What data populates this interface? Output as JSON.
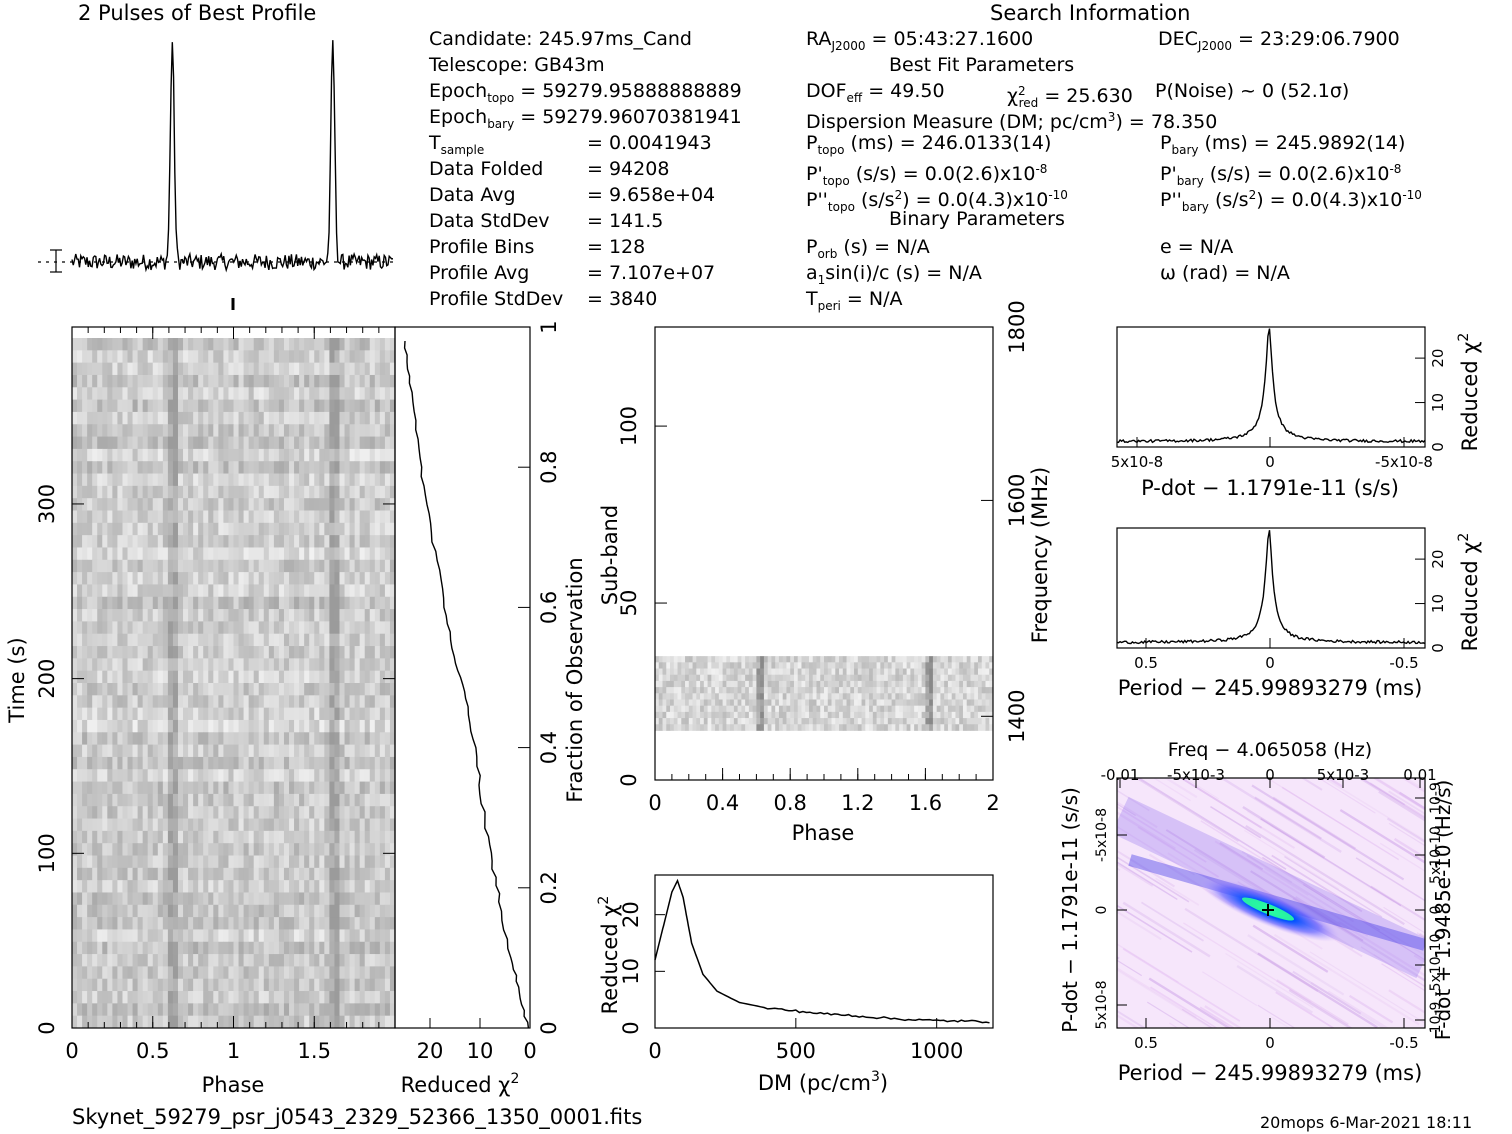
{
  "header": {
    "profile_title": "2 Pulses of Best Profile",
    "search_title": "Search Information",
    "best_fit_title": "Best Fit Parameters",
    "binary_title": "Binary Parameters"
  },
  "info_left": [
    {
      "label": "Candidate:  245.97ms_Cand",
      "value": ""
    },
    {
      "label": "Telescope:  GB43m",
      "value": ""
    },
    {
      "label": "Epoch",
      "sub": "topo",
      "value": "= 59279.95888888889"
    },
    {
      "label": "Epoch",
      "sub": "bary",
      "value": "= 59279.96070381941"
    },
    {
      "label": "T",
      "sub": "sample",
      "value": "=   0.0041943"
    },
    {
      "label": "Data Folded",
      "value": "=   94208"
    },
    {
      "label": "Data Avg",
      "value": "=   9.658e+04"
    },
    {
      "label": "Data StdDev",
      "value": "=   141.5"
    },
    {
      "label": "Profile Bins",
      "value": "=   128"
    },
    {
      "label": "Profile Avg",
      "value": "=   7.107e+07"
    },
    {
      "label": "Profile StdDev",
      "value": "=   3840"
    }
  ],
  "info_mid": {
    "ra": "RA",
    "ra_sub": "J2000",
    "ra_value": " = 05:43:27.1600",
    "dec": "DEC",
    "dec_sub": "J2000",
    "dec_value": " = 23:29:06.7900",
    "dof": "DOF",
    "dof_sub": "eff",
    "dof_value": " = 49.50",
    "chi_label": "χ",
    "chi_sub": "red",
    "chi_value": " = 25.630",
    "pnoise": "P(Noise) ~ 0   (52.1σ)",
    "dm_line": "Dispersion Measure (DM; pc/cm",
    "dm_value": ") = 78.350",
    "ptopo": "P",
    "ptopo_sub": "topo",
    "ptopo_value": " (ms) =  246.0133(14)",
    "pbary": "P",
    "pbary_sub": "bary",
    "pbary_value": " (ms) =  245.9892(14)",
    "pdtopo": "P'",
    "pdtopo_value": " (s/s) = 0.0(2.6)x10",
    "pdtopo_exp": "-8",
    "pdbary": "P'",
    "pdbary_value": " (s/s) = 0.0(2.6)x10",
    "pdbary_exp": "-8",
    "pddtopo": "P''",
    "pddtopo_value": " (s/s",
    "pddtopo_value2": ") = 0.0(4.3)x10",
    "pddtopo_exp": "-10",
    "pddbary": "P''",
    "pddbary_value": " (s/s",
    "pddbary_value2": ") = 0.0(4.3)x10",
    "pddbary_exp": "-10",
    "porb": "P",
    "porb_sub": "orb",
    "porb_value": " (s) = N/A",
    "a1": "a",
    "a1_sub": "1",
    "a1_value": "sin(i)/c (s) = N/A",
    "tperi": "T",
    "tperi_sub": "peri",
    "tperi_value": " = N/A",
    "e_value": "e = N/A",
    "omega_value": "ω (rad) = N/A"
  },
  "footer": {
    "filename": "Skynet_59279_psr_j0543_2329_52366_1350_0001.fits",
    "stamp": "20mops   6-Mar-2021 18:11"
  },
  "labels": {
    "time": "Time (s)",
    "phase": "Phase",
    "reduced_chi": "Reduced χ",
    "fraction": "Fraction of Observation",
    "subband": "Sub-band",
    "frequency": "Frequency (MHz)",
    "dm": "DM (pc/cm",
    "dm_end": ")",
    "pdot_axis": "P-dot − 1.1791e-11 (s/s)",
    "period_axis": "Period − 245.99893279 (ms)",
    "freq_axis": "Freq − 4.065058 (Hz)",
    "pdot_left": "P-dot − 1.1791e-11 (s/s)",
    "fdot_right": "F-dot + 1.9485e-10 (Hz/s)"
  },
  "chart_data": [
    {
      "type": "line",
      "title": "2 Pulses of Best Profile",
      "x_range": [
        0,
        2
      ],
      "peaks_phase": [
        0.625,
        1.625
      ],
      "grid": false
    },
    {
      "type": "heatmap",
      "xlabel": "Phase",
      "ylabel": "Time (s)",
      "x_ticks": [
        "0",
        "0.5",
        "1",
        "1.5"
      ],
      "y_ticks": [
        "0",
        "100",
        "200",
        "300"
      ],
      "xlim": [
        0,
        2
      ],
      "ylim": [
        0,
        395
      ],
      "pulse_phases": [
        0.625,
        1.625
      ]
    },
    {
      "type": "line",
      "xlabel": "Reduced χ2",
      "ylabel": "Fraction of Observation",
      "x_ticks": [
        "20",
        "10",
        "0"
      ],
      "y_ticks": [
        "0",
        "0.2",
        "0.4",
        "0.6",
        "0.8",
        "1"
      ],
      "xlim": [
        27,
        0
      ],
      "ylim": [
        0,
        1
      ],
      "x": [
        0.5,
        2,
        4,
        6,
        8,
        9.5,
        11,
        13,
        15,
        17,
        19,
        21,
        22.5,
        24,
        25
      ],
      "y": [
        0,
        0.05,
        0.1,
        0.18,
        0.25,
        0.32,
        0.4,
        0.47,
        0.53,
        0.6,
        0.68,
        0.76,
        0.84,
        0.92,
        0.98
      ]
    },
    {
      "type": "heatmap",
      "xlabel": "Phase",
      "ylabel": "Sub-band",
      "y2label": "Frequency (MHz)",
      "x_ticks": [
        "0",
        "0.4",
        "0.8",
        "1.2",
        "1.6",
        "2"
      ],
      "y_ticks": [
        "0",
        "50",
        "100"
      ],
      "y2_ticks": [
        "1400",
        "1600",
        "1800"
      ],
      "xlim": [
        0,
        2
      ],
      "ylim": [
        0,
        128
      ],
      "data_rows": [
        14,
        35
      ],
      "pulse_phases": [
        0.625,
        1.625
      ]
    },
    {
      "type": "line",
      "xlabel": "DM (pc/cm3)",
      "ylabel": "Reduced χ2",
      "x_ticks": [
        "0",
        "500",
        "1000"
      ],
      "y_ticks": [
        "0",
        "10",
        "20"
      ],
      "xlim": [
        0,
        1200
      ],
      "ylim": [
        0,
        27
      ],
      "x": [
        0,
        20,
        40,
        60,
        80,
        100,
        130,
        170,
        220,
        300,
        400,
        500,
        600,
        700,
        800,
        900,
        1000,
        1100,
        1200
      ],
      "y": [
        12,
        16,
        20,
        24,
        26,
        23,
        15,
        9.5,
        6.5,
        4.5,
        3.5,
        3,
        2.5,
        2.2,
        1.8,
        1.5,
        1.3,
        1.2,
        1.1
      ]
    },
    {
      "type": "line",
      "xlabel": "P-dot − 1.1791e-11 (s/s)",
      "ylabel": "Reduced χ2",
      "x_ticks": [
        "5x10-8",
        "0",
        "-5x10-8"
      ],
      "y_ticks": [
        "0",
        "10",
        "20"
      ],
      "ylim": [
        0,
        27
      ],
      "peak": 26
    },
    {
      "type": "line",
      "xlabel": "Period − 245.99893279 (ms)",
      "ylabel": "Reduced χ2",
      "x_ticks": [
        "0.5",
        "0",
        "-0.5"
      ],
      "y_ticks": [
        "0",
        "10",
        "20"
      ],
      "ylim": [
        0,
        27
      ],
      "peak": 26
    },
    {
      "type": "heatmap",
      "xlabel": "Period − 245.99893279 (ms)",
      "ylabel": "P-dot − 1.1791e-11 (s/s)",
      "x2label": "Freq − 4.065058 (Hz)",
      "y2label": "F-dot + 1.9485e-10 (Hz/s)",
      "x_ticks": [
        "0.5",
        "0",
        "-0.5"
      ],
      "x2_ticks": [
        "-0.01",
        "-5x10-3",
        "0",
        "5x10-3",
        "0.01"
      ],
      "y_ticks": [
        "-5x10-8",
        "0",
        "5x10-8"
      ],
      "y2_ticks": [
        "10-9",
        "5x10-10",
        "0",
        "-5x10-10",
        "-10-9"
      ]
    }
  ]
}
